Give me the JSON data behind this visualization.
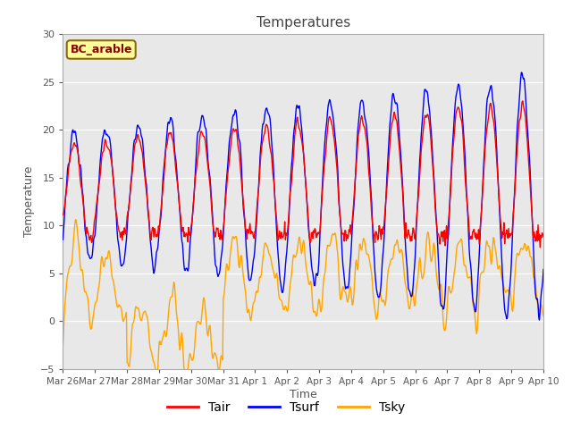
{
  "title": "Temperatures",
  "xlabel": "Time",
  "ylabel": "Temperature",
  "ylim": [
    -5,
    30
  ],
  "yticks": [
    -5,
    0,
    5,
    10,
    15,
    20,
    25,
    30
  ],
  "annotation": "BC_arable",
  "annotation_color": "#8B0000",
  "annotation_bg": "#FFFF99",
  "annotation_edge": "#8B6914",
  "tair_color": "#FF0000",
  "tsurf_color": "#0000FF",
  "tsky_color": "#FFA500",
  "plot_bg": "#E8E8E8",
  "grid_color": "#FFFFFF",
  "line_width": 1.0,
  "n_points": 720,
  "x_tick_labels": [
    "Mar 26",
    "Mar 27",
    "Mar 28",
    "Mar 29",
    "Mar 30",
    "Mar 31",
    "Apr 1",
    "Apr 2",
    "Apr 3",
    "Apr 4",
    "Apr 5",
    "Apr 6",
    "Apr 7",
    "Apr 8",
    "Apr 9",
    "Apr 10"
  ],
  "x_tick_positions": [
    0,
    1,
    2,
    3,
    4,
    5,
    6,
    7,
    8,
    9,
    10,
    11,
    12,
    13,
    14,
    15
  ],
  "figsize": [
    6.4,
    4.8
  ],
  "dpi": 100
}
